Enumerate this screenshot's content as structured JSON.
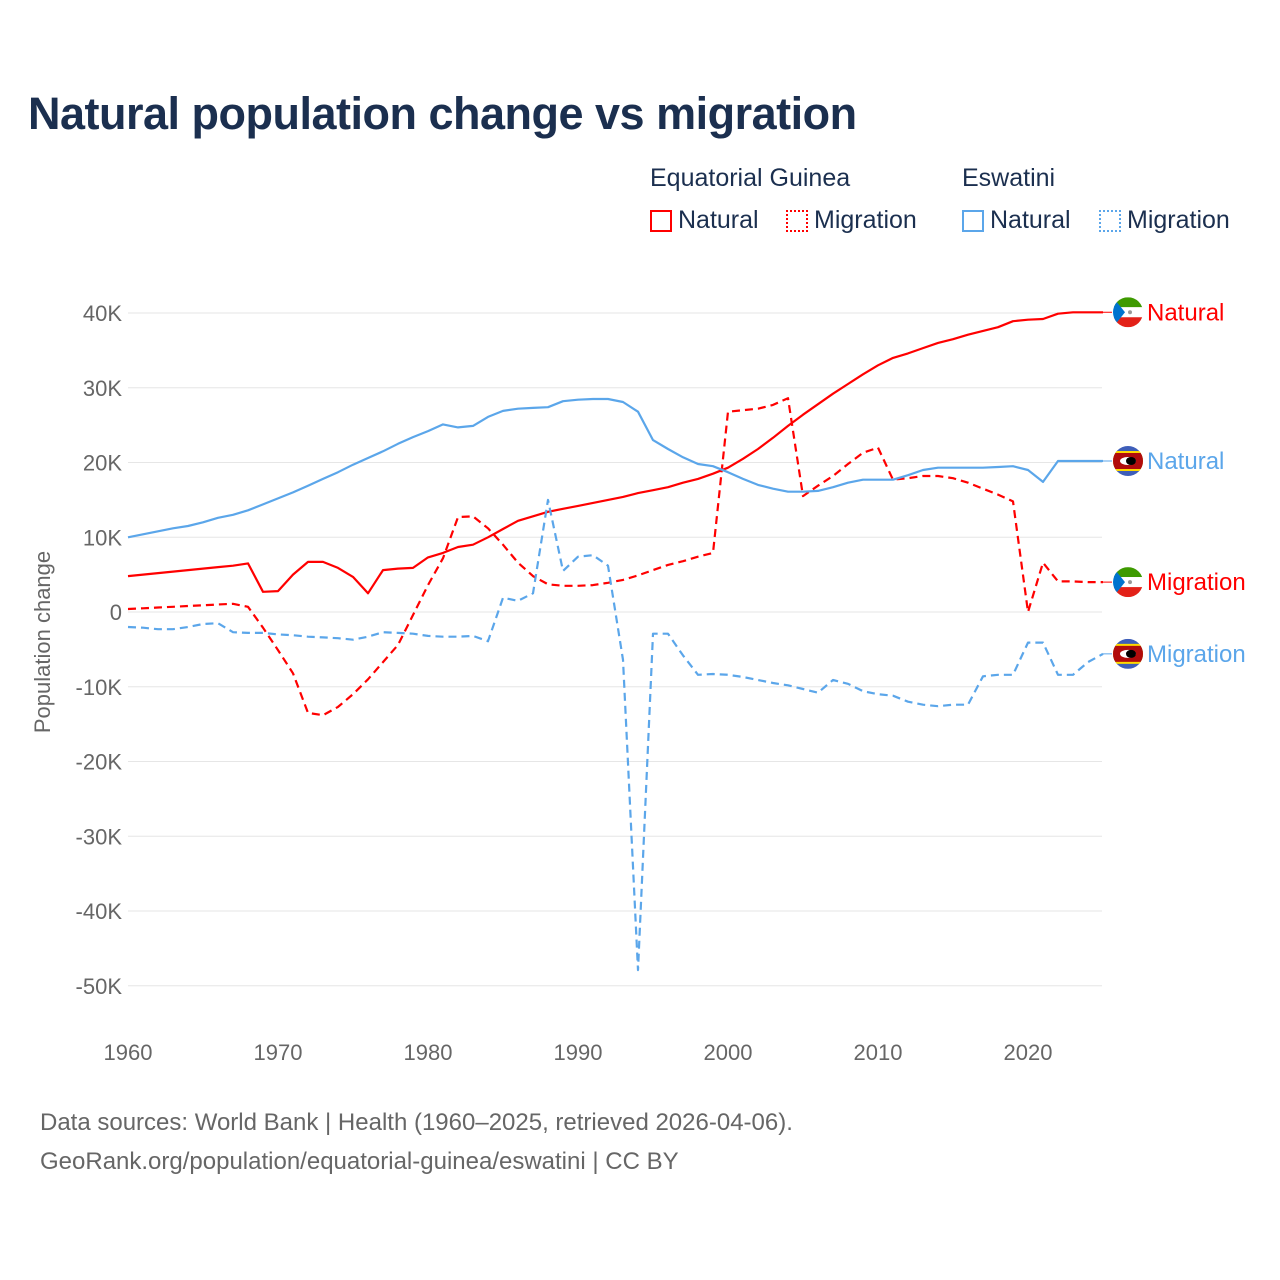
{
  "title": "Natural population change vs migration",
  "legend": {
    "groups": [
      {
        "name": "Equatorial Guinea",
        "items": [
          "Natural",
          "Migration"
        ]
      },
      {
        "name": "Eswatini",
        "items": [
          "Natural",
          "Migration"
        ]
      }
    ]
  },
  "footer": {
    "line1": "Data sources: World Bank | Health (1960–2025, retrieved 2026-04-06).",
    "line2": "GeoRank.org/population/equatorial-guinea/eswatini | CC BY"
  },
  "chart_data": {
    "type": "line",
    "title": "Natural population change vs migration",
    "xlabel": "",
    "ylabel": "Population change",
    "xlim": [
      1960,
      2025
    ],
    "ylim": [
      -50000,
      40000
    ],
    "x_ticks": [
      "1960",
      "1970",
      "1980",
      "1990",
      "2000",
      "2010",
      "2020"
    ],
    "y_ticks": [
      "40K",
      "30K",
      "20K",
      "10K",
      "0",
      "-10K",
      "-20K",
      "-30K",
      "-40K",
      "-50K"
    ],
    "grid": true,
    "x_start": 1960,
    "series": [
      {
        "name": "Natural",
        "country": "Equatorial Guinea",
        "color": "#ff0000",
        "dash": false,
        "end_label": "Natural",
        "values": [
          4.8,
          5.0,
          5.2,
          5.4,
          5.6,
          5.8,
          6.0,
          6.2,
          6.5,
          2.7,
          2.8,
          5.0,
          6.7,
          6.7,
          5.9,
          4.7,
          2.5,
          5.6,
          5.8,
          5.9,
          7.3,
          7.9,
          8.7,
          9.0,
          10.0,
          11.1,
          12.2,
          12.8,
          13.4,
          13.8,
          14.2,
          14.6,
          15.0,
          15.4,
          15.9,
          16.3,
          16.7,
          17.3,
          17.8,
          18.5,
          19.3,
          20.5,
          21.8,
          23.3,
          24.9,
          26.4,
          27.8,
          29.2,
          30.5,
          31.8,
          33.0,
          34.0,
          34.6,
          35.3,
          36.0,
          36.5,
          37.1,
          37.6,
          38.1,
          38.9,
          39.1,
          39.2,
          39.9,
          40.1,
          40.1,
          40.1
        ]
      },
      {
        "name": "Migration",
        "country": "Equatorial Guinea",
        "color": "#ff0000",
        "dash": true,
        "end_label": "Migration",
        "values": [
          0.4,
          0.5,
          0.6,
          0.7,
          0.8,
          0.9,
          1.0,
          1.1,
          0.7,
          -2.1,
          -5.1,
          -8.2,
          -13.5,
          -13.8,
          -12.7,
          -11.0,
          -9.0,
          -6.7,
          -4.4,
          -0.4,
          3.6,
          7.2,
          12.7,
          12.8,
          11.2,
          9.0,
          6.6,
          4.8,
          3.7,
          3.5,
          3.5,
          3.6,
          3.9,
          4.3,
          4.9,
          5.6,
          6.3,
          6.8,
          7.4,
          7.9,
          26.8,
          27.0,
          27.2,
          27.7,
          28.6,
          15.5,
          16.9,
          18.2,
          19.8,
          21.3,
          22.0,
          17.7,
          17.9,
          18.2,
          18.2,
          17.9,
          17.3,
          16.5,
          15.7,
          14.8,
          0.0,
          6.6,
          4.1,
          4.1,
          4.0,
          4.0
        ]
      },
      {
        "name": "Natural",
        "country": "Eswatini",
        "color": "#5ba6ea",
        "dash": false,
        "end_label": "Natural",
        "values": [
          10.0,
          10.4,
          10.8,
          11.2,
          11.5,
          12.0,
          12.6,
          13.0,
          13.6,
          14.4,
          15.2,
          16.0,
          16.9,
          17.8,
          18.7,
          19.7,
          20.6,
          21.5,
          22.5,
          23.4,
          24.2,
          25.1,
          24.7,
          24.9,
          26.1,
          26.9,
          27.2,
          27.3,
          27.4,
          28.2,
          28.4,
          28.5,
          28.5,
          28.1,
          26.8,
          23.0,
          21.8,
          20.7,
          19.8,
          19.5,
          18.7,
          17.8,
          17.0,
          16.5,
          16.1,
          16.1,
          16.2,
          16.7,
          17.3,
          17.7,
          17.7,
          17.7,
          18.3,
          19.0,
          19.3,
          19.3,
          19.3,
          19.3,
          19.4,
          19.5,
          19.0,
          17.4,
          20.2,
          20.2,
          20.2,
          20.2
        ]
      },
      {
        "name": "Migration",
        "country": "Eswatini",
        "color": "#5ba6ea",
        "dash": true,
        "end_label": "Migration",
        "values": [
          -2.0,
          -2.1,
          -2.3,
          -2.3,
          -2.0,
          -1.6,
          -1.5,
          -2.7,
          -2.8,
          -2.8,
          -3.0,
          -3.1,
          -3.3,
          -3.4,
          -3.5,
          -3.7,
          -3.3,
          -2.7,
          -2.8,
          -2.9,
          -3.2,
          -3.3,
          -3.3,
          -3.2,
          -3.9,
          1.9,
          1.5,
          2.5,
          15.0,
          5.5,
          7.4,
          7.6,
          6.2,
          -6.4,
          -47.9,
          -2.9,
          -2.9,
          -5.8,
          -8.4,
          -8.3,
          -8.4,
          -8.7,
          -9.1,
          -9.5,
          -9.8,
          -10.3,
          -10.8,
          -9.1,
          -9.6,
          -10.6,
          -11.0,
          -11.2,
          -12.0,
          -12.4,
          -12.6,
          -12.4,
          -12.4,
          -8.6,
          -8.4,
          -8.4,
          -4.1,
          -4.1,
          -8.4,
          -8.4,
          -6.7,
          -5.6
        ]
      }
    ],
    "value_unit": "thousands"
  }
}
